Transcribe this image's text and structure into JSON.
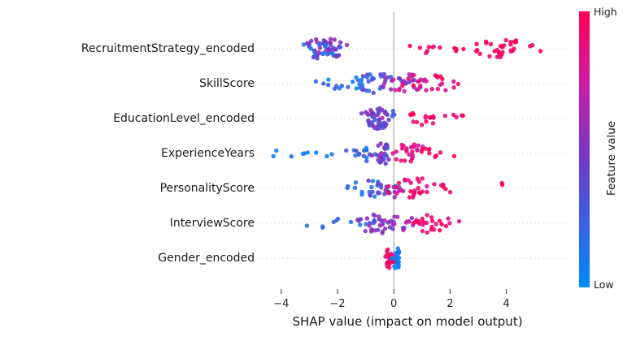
{
  "chart_data": {
    "type": "scatter",
    "variant": "shap-beeswarm-summary",
    "title": "",
    "xlabel": "SHAP value (impact on model output)",
    "ylabel": "",
    "x_range": [
      -4.6,
      5.6
    ],
    "grid": "horizontal-dotted",
    "zero_line_color": "#999999",
    "x_ticks": [
      {
        "v": -4,
        "label": "−4"
      },
      {
        "v": -2,
        "label": "−2"
      },
      {
        "v": 0,
        "label": "0"
      },
      {
        "v": 2,
        "label": "2"
      },
      {
        "v": 4,
        "label": "4"
      }
    ],
    "colorbar": {
      "label": "Feature value",
      "high": "High",
      "low": "Low",
      "stops": [
        {
          "t": 0.0,
          "c": "#008bfb"
        },
        {
          "t": 0.45,
          "c": "#6e3bc9"
        },
        {
          "t": 0.75,
          "c": "#d01ba4"
        },
        {
          "t": 1.0,
          "c": "#ff0051"
        }
      ]
    },
    "features": [
      {
        "name": "RecruitmentStrategy_encoded",
        "clusters": [
          {
            "cx": -2.45,
            "sd": 0.42,
            "n": 50,
            "vmin": 0.3,
            "vmax": 0.62
          },
          {
            "cx": -2.6,
            "sd": 0.3,
            "n": 12,
            "vmin": 0.05,
            "vmax": 0.3
          },
          {
            "cx": 1.2,
            "sd": 0.45,
            "n": 8,
            "vmin": 0.85,
            "vmax": 1.0
          },
          {
            "cx": 2.2,
            "sd": 0.15,
            "n": 3,
            "vmin": 0.85,
            "vmax": 1.0
          },
          {
            "cx": 3.95,
            "sd": 0.72,
            "n": 36,
            "vmin": 0.88,
            "vmax": 1.0
          }
        ]
      },
      {
        "name": "SkillScore",
        "clusters": [
          {
            "cx": -1.6,
            "sd": 0.45,
            "n": 18,
            "vmin": 0.0,
            "vmax": 0.3
          },
          {
            "cx": -0.6,
            "sd": 0.45,
            "n": 26,
            "vmin": 0.15,
            "vmax": 0.6
          },
          {
            "cx": 0.3,
            "sd": 0.4,
            "n": 26,
            "vmin": 0.45,
            "vmax": 0.9
          },
          {
            "cx": 1.3,
            "sd": 0.45,
            "n": 22,
            "vmin": 0.75,
            "vmax": 1.0
          }
        ]
      },
      {
        "name": "EducationLevel_encoded",
        "clusters": [
          {
            "cx": -0.6,
            "sd": 0.28,
            "n": 46,
            "vmin": 0.28,
            "vmax": 0.6
          },
          {
            "cx": -0.15,
            "sd": 0.12,
            "n": 8,
            "vmin": 0.2,
            "vmax": 0.5
          },
          {
            "cx": 0.9,
            "sd": 0.35,
            "n": 12,
            "vmin": 0.85,
            "vmax": 1.0
          },
          {
            "cx": 1.9,
            "sd": 0.35,
            "n": 10,
            "vmin": 0.85,
            "vmax": 1.0
          }
        ]
      },
      {
        "name": "ExperienceYears",
        "clusters": [
          {
            "cx": -3.0,
            "sd": 0.75,
            "n": 10,
            "vmin": 0.0,
            "vmax": 0.18
          },
          {
            "cx": -1.0,
            "sd": 0.4,
            "n": 16,
            "vmin": 0.05,
            "vmax": 0.4
          },
          {
            "cx": -0.3,
            "sd": 0.3,
            "n": 24,
            "vmin": 0.25,
            "vmax": 0.65
          },
          {
            "cx": 0.6,
            "sd": 0.35,
            "n": 30,
            "vmin": 0.72,
            "vmax": 1.0
          },
          {
            "cx": 1.5,
            "sd": 0.3,
            "n": 6,
            "vmin": 0.85,
            "vmax": 1.0
          }
        ]
      },
      {
        "name": "PersonalityScore",
        "clusters": [
          {
            "cx": -0.75,
            "sd": 0.38,
            "n": 24,
            "vmin": 0.05,
            "vmax": 0.5
          },
          {
            "cx": -0.1,
            "sd": 0.25,
            "n": 14,
            "vmin": 0.3,
            "vmax": 0.7
          },
          {
            "cx": 0.8,
            "sd": 0.45,
            "n": 28,
            "vmin": 0.8,
            "vmax": 1.0
          },
          {
            "cx": 1.9,
            "sd": 0.2,
            "n": 4,
            "vmin": 0.85,
            "vmax": 1.0
          },
          {
            "cx": 3.85,
            "sd": 0.07,
            "n": 2,
            "vmin": 0.95,
            "vmax": 1.0
          }
        ]
      },
      {
        "name": "InterviewScore",
        "clusters": [
          {
            "cx": -2.0,
            "sd": 0.5,
            "n": 11,
            "vmin": 0.0,
            "vmax": 0.28
          },
          {
            "cx": -0.55,
            "sd": 0.38,
            "n": 28,
            "vmin": 0.2,
            "vmax": 0.65
          },
          {
            "cx": 0.15,
            "sd": 0.3,
            "n": 16,
            "vmin": 0.4,
            "vmax": 0.8
          },
          {
            "cx": 1.15,
            "sd": 0.5,
            "n": 26,
            "vmin": 0.82,
            "vmax": 1.0
          }
        ]
      },
      {
        "name": "Gender_encoded",
        "clusters": [
          {
            "cx": -0.13,
            "sd": 0.1,
            "n": 24,
            "vmin": 0.88,
            "vmax": 1.0
          },
          {
            "cx": 0.1,
            "sd": 0.09,
            "n": 20,
            "vmin": 0.0,
            "vmax": 0.14
          }
        ]
      }
    ]
  }
}
